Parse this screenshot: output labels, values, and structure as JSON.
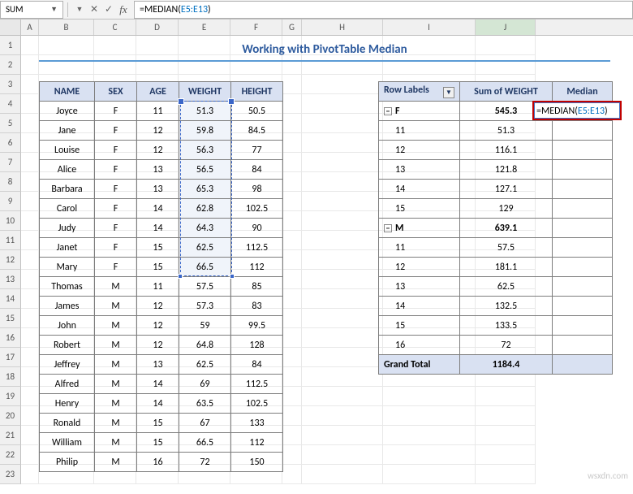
{
  "nameBox": "SUM",
  "formula_prefix": "=MEDIAN(",
  "formula_ref": "E5:E13",
  "formula_suffix": ")",
  "title": "Working with PivotTable Median",
  "columns": [
    "A",
    "B",
    "C",
    "D",
    "E",
    "F",
    "G",
    "H",
    "I",
    "J"
  ],
  "col_widths": [
    "cA",
    "cB",
    "cC",
    "cD",
    "cE",
    "cF",
    "cG",
    "cH",
    "cI",
    "cJ"
  ],
  "row_numbers": [
    1,
    2,
    3,
    4,
    5,
    6,
    7,
    8,
    9,
    10,
    11,
    12,
    13,
    14,
    15,
    16,
    17,
    18,
    19,
    20,
    21,
    22,
    23
  ],
  "headers": {
    "name": "NAME",
    "sex": "SEX",
    "age": "AGE",
    "weight": "WEIGHT",
    "height": "HEIGHT"
  },
  "pivot_headers": {
    "rl": "Row Labels",
    "sw": "Sum of WEIGHT",
    "md": "Median"
  },
  "data": [
    {
      "name": "Joyce",
      "sex": "F",
      "age": 11,
      "wt": "51.3",
      "ht": "50.5",
      "sel": true
    },
    {
      "name": "Jane",
      "sex": "F",
      "age": 12,
      "wt": "59.8",
      "ht": "84.5",
      "sel": true
    },
    {
      "name": "Louise",
      "sex": "F",
      "age": 12,
      "wt": "56.3",
      "ht": "77",
      "sel": true
    },
    {
      "name": "Alice",
      "sex": "F",
      "age": 13,
      "wt": "56.5",
      "ht": "84",
      "sel": true
    },
    {
      "name": "Barbara",
      "sex": "F",
      "age": 13,
      "wt": "65.3",
      "ht": "98",
      "sel": true
    },
    {
      "name": "Carol",
      "sex": "F",
      "age": 14,
      "wt": "62.8",
      "ht": "102.5",
      "sel": true
    },
    {
      "name": "Judy",
      "sex": "F",
      "age": 14,
      "wt": "64.3",
      "ht": "90",
      "sel": true
    },
    {
      "name": "Janet",
      "sex": "F",
      "age": 15,
      "wt": "62.5",
      "ht": "112.5",
      "sel": true
    },
    {
      "name": "Mary",
      "sex": "F",
      "age": 15,
      "wt": "66.5",
      "ht": "112",
      "sel": true
    },
    {
      "name": "Thomas",
      "sex": "M",
      "age": 11,
      "wt": "57.5",
      "ht": "85"
    },
    {
      "name": "James",
      "sex": "M",
      "age": 12,
      "wt": "57.3",
      "ht": "83"
    },
    {
      "name": "John",
      "sex": "M",
      "age": 12,
      "wt": "59",
      "ht": "99.5"
    },
    {
      "name": "Robert",
      "sex": "M",
      "age": 12,
      "wt": "64.8",
      "ht": "128"
    },
    {
      "name": "Jeffrey",
      "sex": "M",
      "age": 13,
      "wt": "62.5",
      "ht": "84"
    },
    {
      "name": "Alfred",
      "sex": "M",
      "age": 14,
      "wt": "69",
      "ht": "112.5"
    },
    {
      "name": "Henry",
      "sex": "M",
      "age": 14,
      "wt": "63.5",
      "ht": "102.5"
    },
    {
      "name": "Ronald",
      "sex": "M",
      "age": 15,
      "wt": "67",
      "ht": "133"
    },
    {
      "name": "William",
      "sex": "M",
      "age": 15,
      "wt": "66.5",
      "ht": "112"
    },
    {
      "name": "Philip",
      "sex": "M",
      "age": 16,
      "wt": "72",
      "ht": "150"
    }
  ],
  "pivot": [
    {
      "label": "F",
      "val": "545.3",
      "sub": true,
      "collapse": true
    },
    {
      "label": "11",
      "val": "51.3"
    },
    {
      "label": "12",
      "val": "116.1"
    },
    {
      "label": "13",
      "val": "121.8"
    },
    {
      "label": "14",
      "val": "127.1"
    },
    {
      "label": "15",
      "val": "129"
    },
    {
      "label": "M",
      "val": "639.1",
      "sub": true,
      "collapse": true
    },
    {
      "label": "11",
      "val": "57.5"
    },
    {
      "label": "12",
      "val": "181.1"
    },
    {
      "label": "13",
      "val": "62.5"
    },
    {
      "label": "14",
      "val": "132.5"
    },
    {
      "label": "15",
      "val": "133.5"
    },
    {
      "label": "16",
      "val": "72"
    }
  ],
  "grand_total": {
    "label": "Grand Total",
    "val": "1184.4"
  },
  "watermark": "wsxdn.com"
}
